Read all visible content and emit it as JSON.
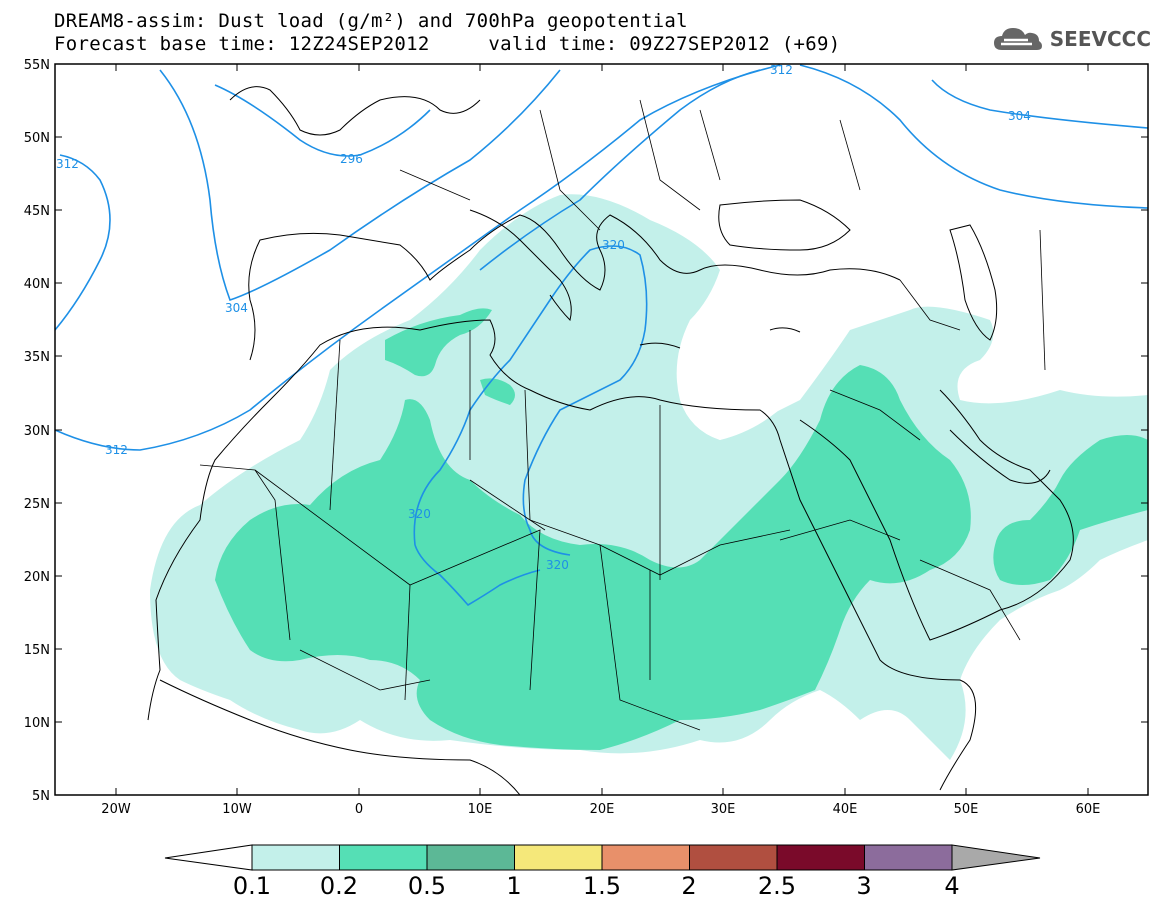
{
  "header": {
    "title_line1": "DREAM8-assim: Dust load (g/m²) and 700hPa geopotential",
    "title_line2": "Forecast base time: 12Z24SEP2012     valid time: 09Z27SEP2012 (+69)"
  },
  "logo": {
    "text": "SEEVCCC",
    "icon": "cloud-icon"
  },
  "map": {
    "lon_range": [
      -25,
      65
    ],
    "lat_range": [
      5,
      55
    ],
    "lat_ticks": [
      "55N",
      "50N",
      "45N",
      "40N",
      "35N",
      "30N",
      "25N",
      "20N",
      "15N",
      "10N",
      "5N"
    ],
    "lon_ticks": [
      "20W",
      "10W",
      "0",
      "10E",
      "20E",
      "30E",
      "40E",
      "50E",
      "60E"
    ],
    "contour_color": "#1e90e6",
    "contour_labels": [
      "312",
      "296",
      "304",
      "312",
      "304",
      "312",
      "320",
      "320",
      "320"
    ]
  },
  "colorbar": {
    "labels": [
      "0.1",
      "0.2",
      "0.5",
      "1",
      "1.5",
      "2",
      "2.5",
      "3",
      "4"
    ],
    "colors": [
      "#c3f0ea",
      "#55dfb5",
      "#5cb896",
      "#f5e87a",
      "#e8906a",
      "#b04f40",
      "#7a0a2a",
      "#8c6c9c",
      "#a9a9a9"
    ]
  }
}
